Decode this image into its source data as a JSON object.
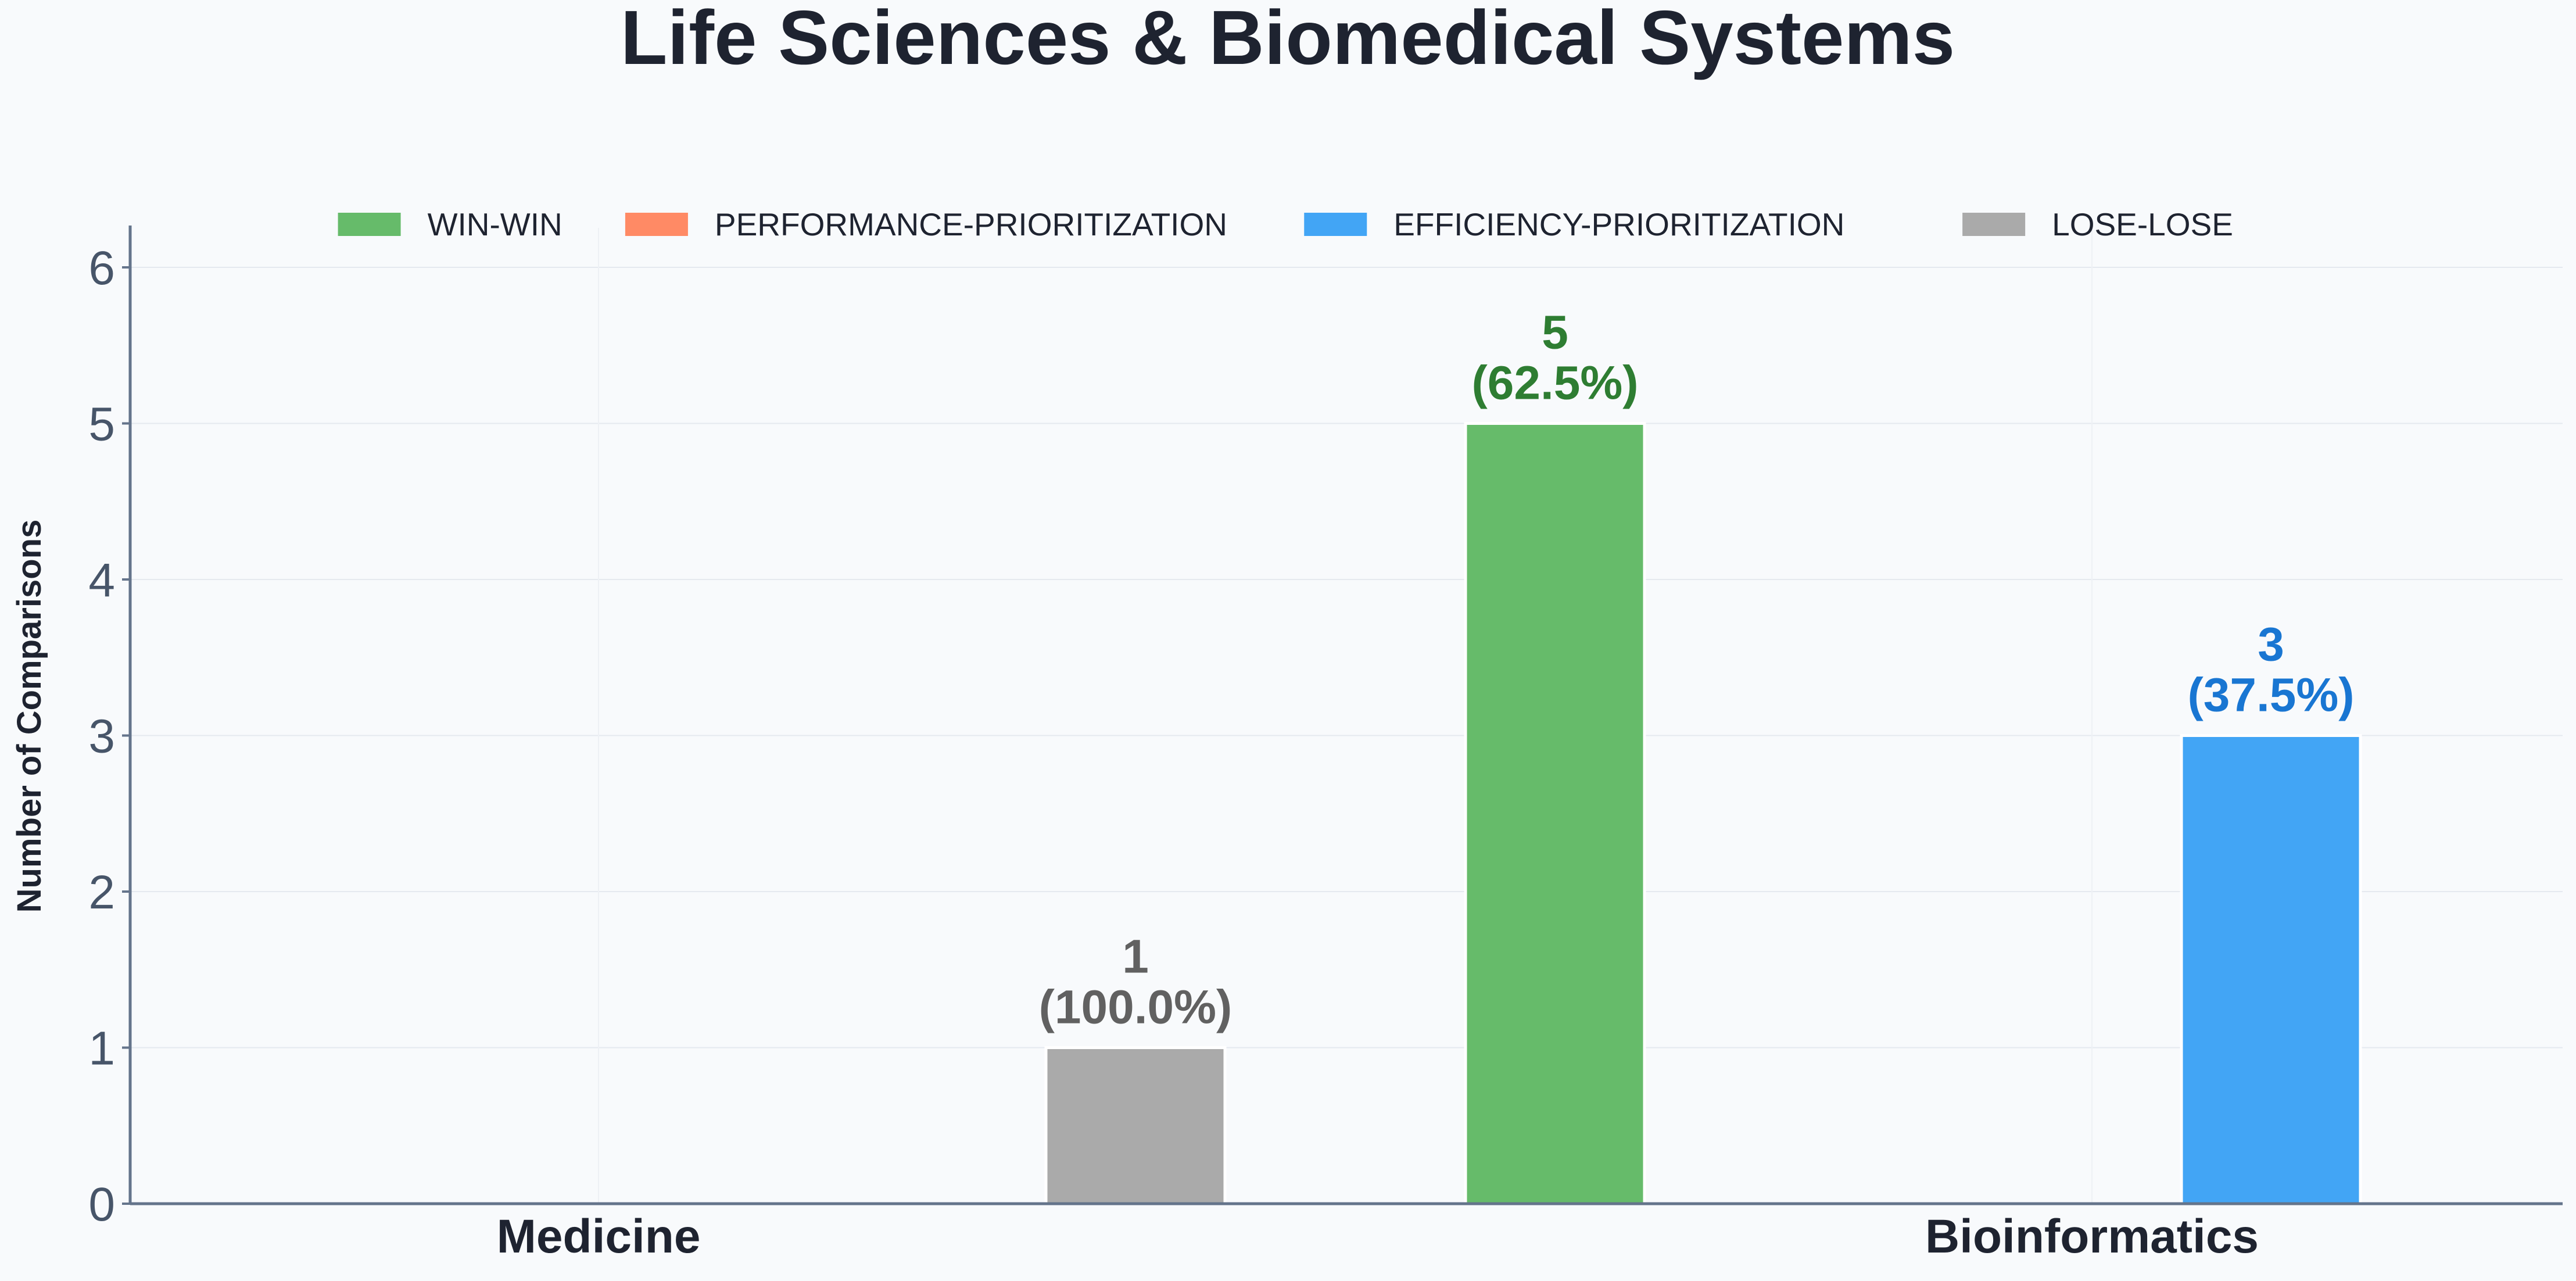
{
  "chart_data": {
    "type": "bar",
    "title": "Life Sciences & Biomedical Systems",
    "xlabel": "",
    "ylabel": "Number of Comparisons",
    "ylim": [
      0,
      6.25
    ],
    "yticks": [
      "0",
      "1",
      "2",
      "3",
      "4",
      "5",
      "6"
    ],
    "grid": true,
    "legend_position": "top-center",
    "categories": [
      "Medicine",
      "Bioinformatics"
    ],
    "series": [
      {
        "name": "WIN-WIN",
        "color": "#66bb6a",
        "label_color": "#2e7d32",
        "values": [
          0,
          5
        ],
        "labels": [
          "",
          "5\n(62.5%)"
        ]
      },
      {
        "name": "PERFORMANCE-PRIORITIZATION",
        "color": "#ff8a65",
        "label_color": "#e64a19",
        "values": [
          0,
          0
        ],
        "labels": [
          "",
          ""
        ]
      },
      {
        "name": "EFFICIENCY-PRIORITIZATION",
        "color": "#42a5f5",
        "label_color": "#1976d2",
        "values": [
          0,
          3
        ],
        "labels": [
          "",
          "3\n(37.5%)"
        ]
      },
      {
        "name": "LOSE-LOSE",
        "color": "#aaaaaa",
        "label_color": "#616161",
        "values": [
          1,
          0
        ],
        "labels": [
          "1\n(100.0%)",
          ""
        ]
      }
    ],
    "colors": {
      "axis": "#64748b",
      "tick_text": "#475569",
      "dark_text": "#1e2330"
    }
  }
}
